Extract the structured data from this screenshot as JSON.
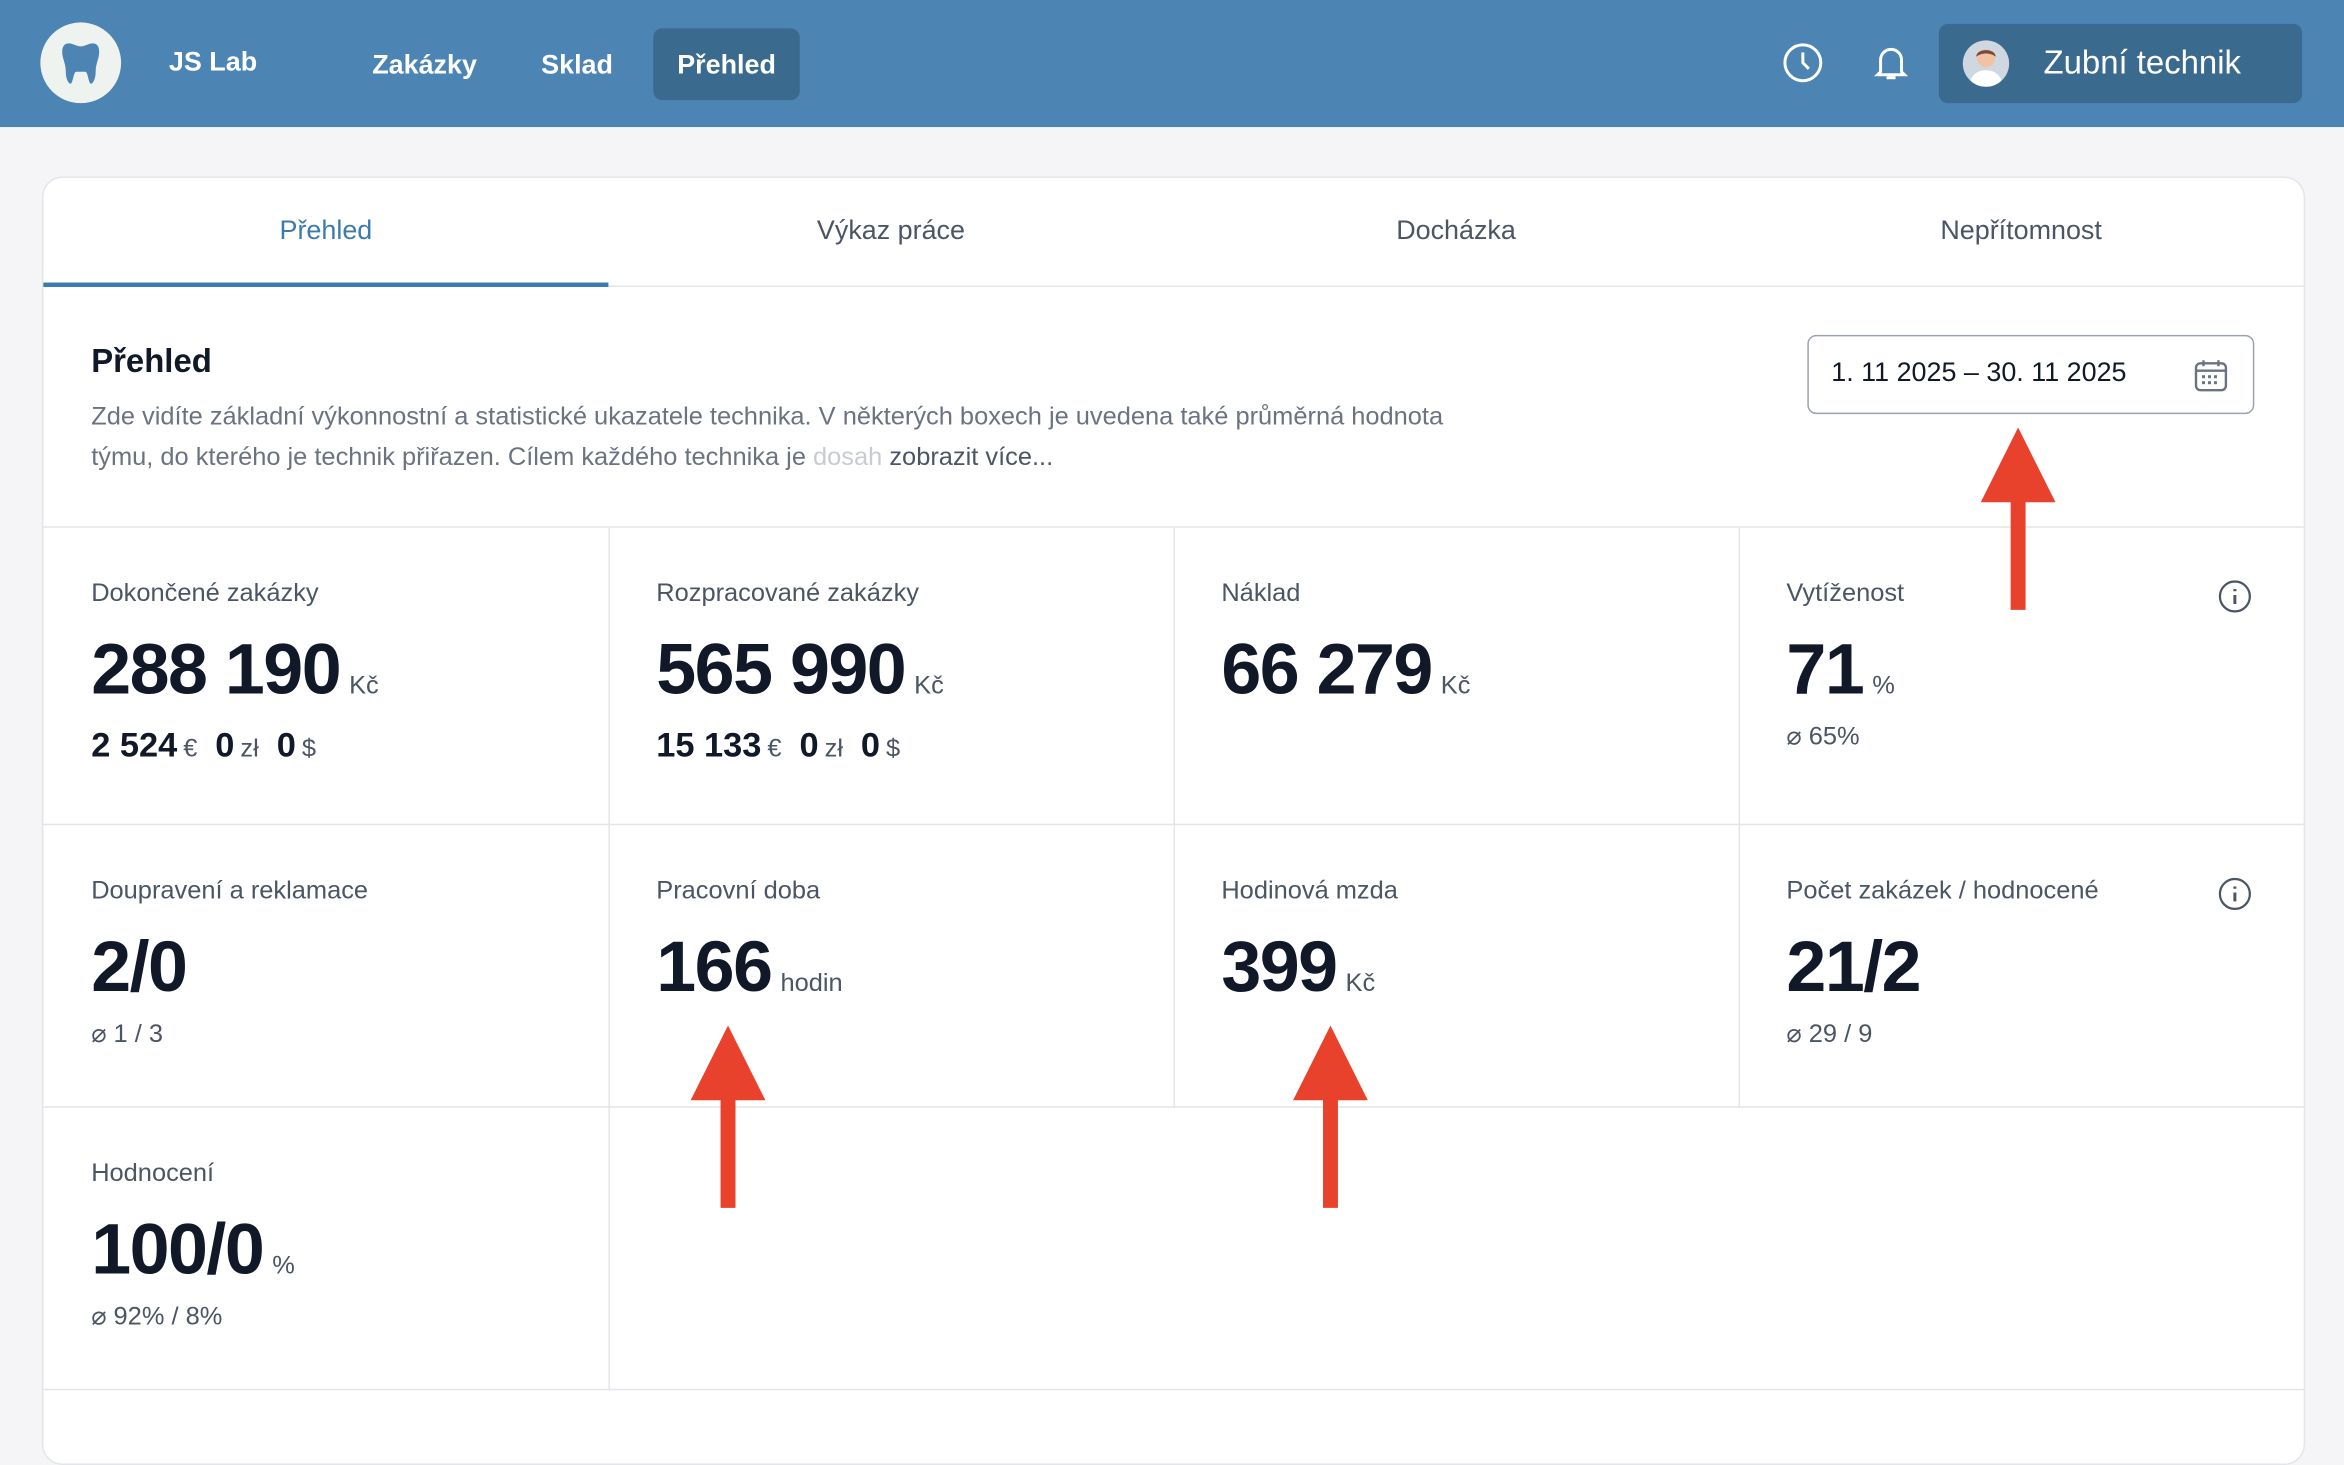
{
  "header": {
    "brand": "JS Lab",
    "nav": [
      {
        "label": "Zakázky"
      },
      {
        "label": "Sklad"
      },
      {
        "label": "Přehled",
        "active": true
      }
    ],
    "user_name": "Zubní technik",
    "icons": [
      "tooth-logo-icon",
      "clock-icon",
      "bell-icon",
      "avatar"
    ],
    "colors": {
      "header_bg": "#4c84b3",
      "active_bg": "#3b6a8f"
    }
  },
  "tabs": [
    {
      "label": "Přehled",
      "active": true
    },
    {
      "label": "Výkaz práce"
    },
    {
      "label": "Docházka"
    },
    {
      "label": "Nepřítomnost"
    }
  ],
  "section": {
    "title": "Přehled",
    "description": "Zde vidíte základní výkonnostní a statistické ukazatele technika. V některých boxech je uvedena také průměrná hodnota týmu, do kterého je technik přiřazen. Cílem každého technika je",
    "description_fade": " dosah",
    "more": "zobrazit více...",
    "date_range": "1. 11 2025 – 30. 11 2025"
  },
  "stats": {
    "completed": {
      "label": "Dokončené zakázky",
      "value": "288 190",
      "unit": "Kč",
      "eur": "2 524",
      "eur_unit": "€",
      "pln": "0",
      "pln_unit": "zł",
      "usd": "0",
      "usd_unit": "$"
    },
    "in_progress": {
      "label": "Rozpracované zakázky",
      "value": "565 990",
      "unit": "Kč",
      "eur": "15 133",
      "eur_unit": "€",
      "pln": "0",
      "pln_unit": "zł",
      "usd": "0",
      "usd_unit": "$"
    },
    "cost": {
      "label": "Náklad",
      "value": "66 279",
      "unit": "Kč"
    },
    "utilization": {
      "label": "Vytíženost",
      "value": "71",
      "unit": "%",
      "avg": "⌀ 65%"
    },
    "rework": {
      "label": "Doupravení a reklamace",
      "value": "2/0",
      "avg": "⌀ 1 / 3"
    },
    "working_time": {
      "label": "Pracovní doba",
      "value": "166",
      "unit": "hodin"
    },
    "hourly_wage": {
      "label": "Hodinová mzda",
      "value": "399",
      "unit": "Kč"
    },
    "orders_rated": {
      "label": "Počet zakázek / hodnocené",
      "value": "21/2",
      "avg": "⌀ 29 / 9"
    },
    "rating": {
      "label": "Hodnocení",
      "value": "100/0",
      "unit": "%",
      "avg": "⌀ 92% / 8%"
    }
  },
  "annotation_color": "#e8412c"
}
